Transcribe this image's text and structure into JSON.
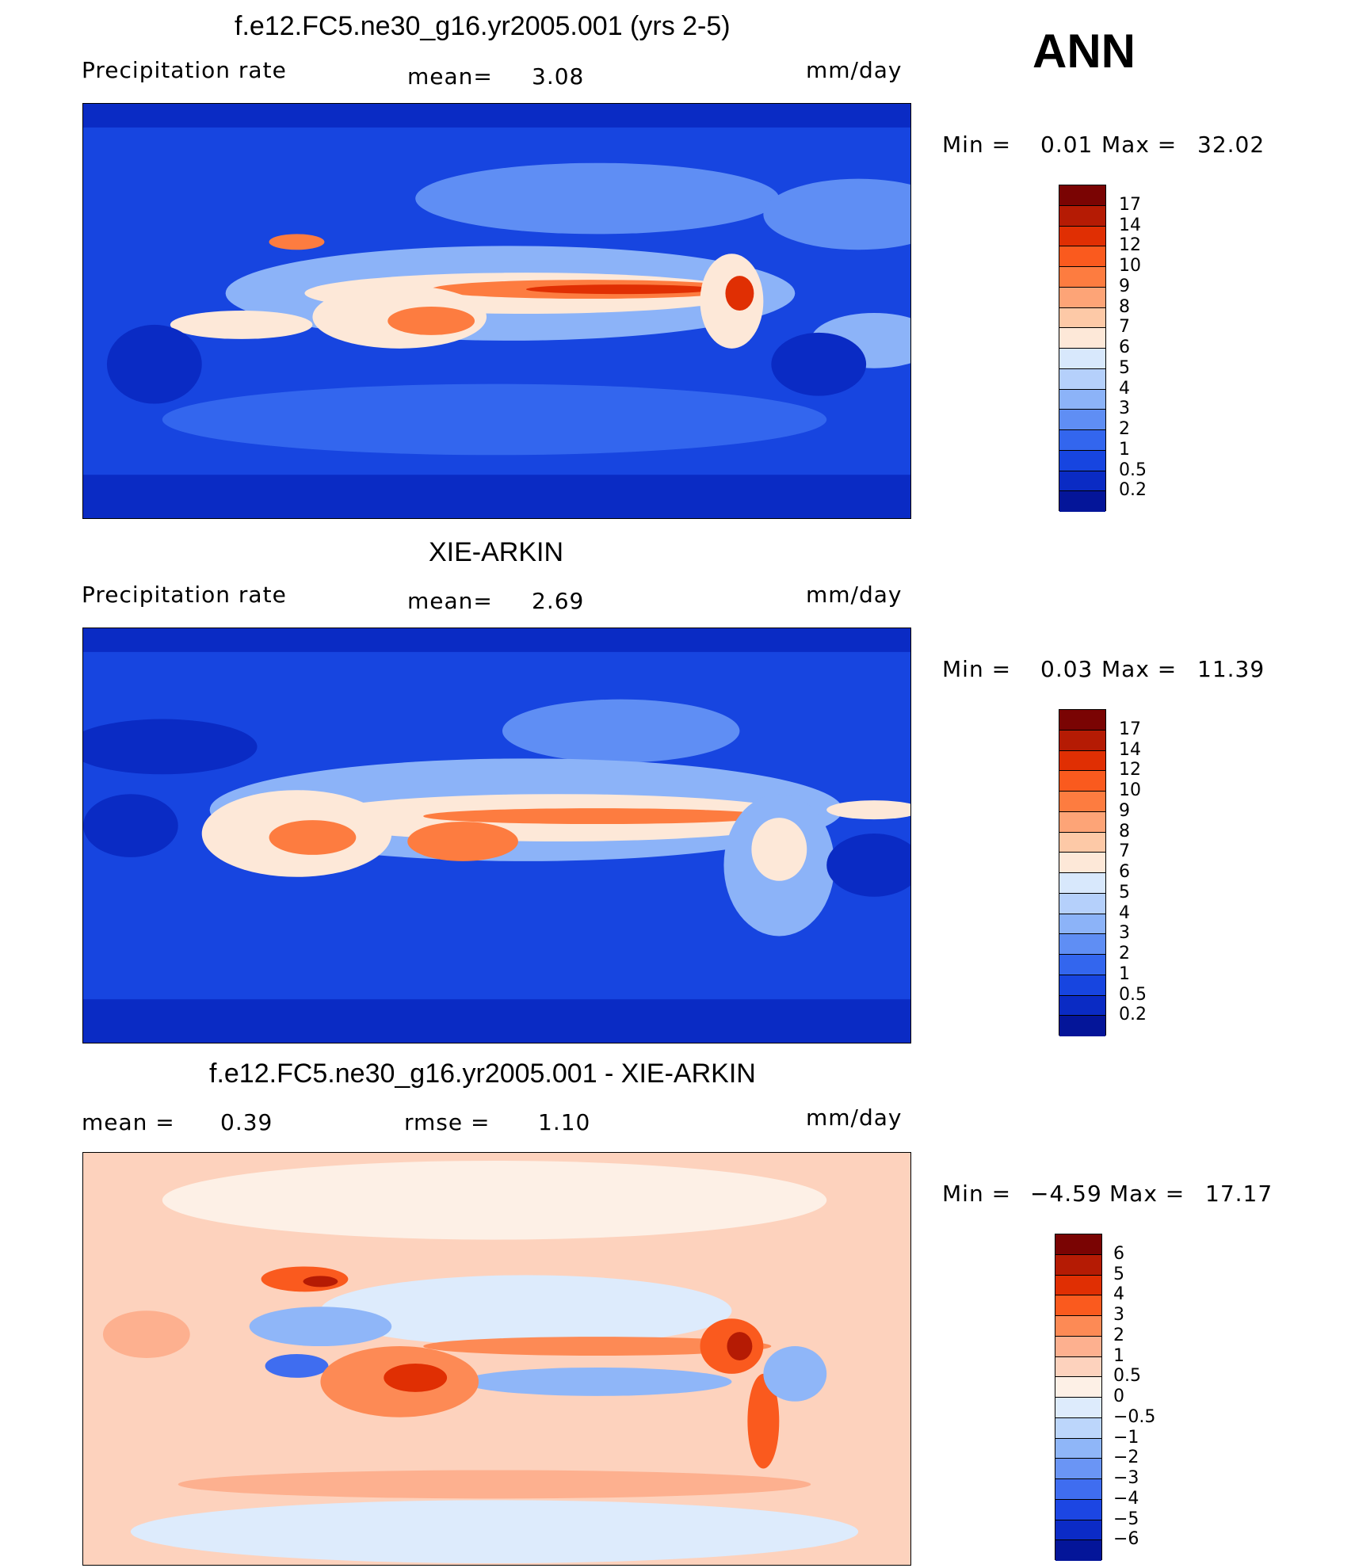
{
  "season": "ANN",
  "panels": [
    {
      "title": "f.e12.FC5.ne30_g16.yr2005.001 (yrs 2-5)",
      "left_label": "Precipitation  rate",
      "mid_label": "mean=",
      "mid_value": "3.08",
      "units": "mm/day",
      "min_label": "Min  =",
      "min_value": "0.01",
      "max_label": "Max  =",
      "max_value": "32.02",
      "colorbar": {
        "labels": [
          "17",
          "14",
          "12",
          "10",
          "9",
          "8",
          "7",
          "6",
          "5",
          "4",
          "3",
          "2",
          "1",
          "0.5",
          "0.2"
        ],
        "colors": [
          "#7a0403",
          "#b51b04",
          "#e02f03",
          "#fa5a1e",
          "#fd7c40",
          "#fda477",
          "#fdc9a7",
          "#fde8d8",
          "#d8e8fc",
          "#b5d0fb",
          "#8cb3f8",
          "#5f8ef4",
          "#3366ee",
          "#1745e0",
          "#0a2bc4",
          "#041599"
        ]
      },
      "map_palette": [
        "#0a2bc4",
        "#1745e0",
        "#3366ee",
        "#5f8ef4",
        "#8cb3f8",
        "#fde8d8",
        "#fd7c40",
        "#e02f03"
      ]
    },
    {
      "title": "XIE-ARKIN",
      "left_label": "Precipitation  rate",
      "mid_label": "mean=",
      "mid_value": "2.69",
      "units": "mm/day",
      "min_label": "Min  =",
      "min_value": "0.03",
      "max_label": "Max  =",
      "max_value": "11.39",
      "colorbar": {
        "labels": [
          "17",
          "14",
          "12",
          "10",
          "9",
          "8",
          "7",
          "6",
          "5",
          "4",
          "3",
          "2",
          "1",
          "0.5",
          "0.2"
        ],
        "colors": [
          "#7a0403",
          "#b51b04",
          "#e02f03",
          "#fa5a1e",
          "#fd7c40",
          "#fda477",
          "#fdc9a7",
          "#fde8d8",
          "#d8e8fc",
          "#b5d0fb",
          "#8cb3f8",
          "#5f8ef4",
          "#3366ee",
          "#1745e0",
          "#0a2bc4",
          "#041599"
        ]
      }
    },
    {
      "title": "f.e12.FC5.ne30_g16.yr2005.001 - XIE-ARKIN",
      "left_label": "mean  =",
      "left_value": "0.39",
      "mid_label": "rmse  =",
      "mid_value": "1.10",
      "units": "mm/day",
      "min_label": "Min  =",
      "min_value": "−4.59",
      "max_label": "Max  =",
      "max_value": "17.17",
      "colorbar": {
        "labels": [
          "6",
          "5",
          "4",
          "3",
          "2",
          "1",
          "0.5",
          "0",
          "−0.5",
          "−1",
          "−2",
          "−3",
          "−4",
          "−5",
          "−6"
        ],
        "colors": [
          "#7a0403",
          "#b51b04",
          "#e02f03",
          "#fa5a1e",
          "#fd8a55",
          "#fdb08f",
          "#fdd2bd",
          "#fdf0e6",
          "#ddebfc",
          "#bcd6fb",
          "#8fb6f8",
          "#6a95f5",
          "#3f6df0",
          "#1c46e3",
          "#0b2bc6",
          "#041599"
        ]
      }
    }
  ]
}
